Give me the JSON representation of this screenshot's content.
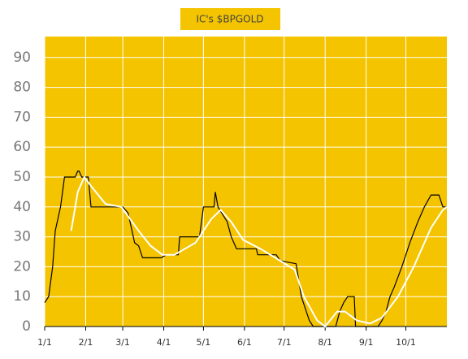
{
  "chart_data": {
    "type": "line",
    "title": "IC's $BPGOLD",
    "xlim": [
      0,
      304
    ],
    "ylim": [
      0,
      97
    ],
    "xticks": [
      {
        "value": 0,
        "label": "1/1"
      },
      {
        "value": 31,
        "label": "2/1"
      },
      {
        "value": 59,
        "label": "3/1"
      },
      {
        "value": 90,
        "label": "4/1"
      },
      {
        "value": 120,
        "label": "5/1"
      },
      {
        "value": 151,
        "label": "6/1"
      },
      {
        "value": 181,
        "label": "7/1"
      },
      {
        "value": 212,
        "label": "8/1"
      },
      {
        "value": 243,
        "label": "9/1"
      },
      {
        "value": 273,
        "label": "10/1"
      }
    ],
    "yticks": [
      0,
      10,
      20,
      30,
      40,
      50,
      60,
      70,
      80,
      90
    ],
    "grid": true,
    "background": "#f5c400",
    "series": [
      {
        "color": "#000000",
        "x": [
          0,
          3,
          6,
          8,
          12,
          15,
          23,
          25,
          26,
          28,
          33,
          35,
          59,
          63,
          68,
          71,
          74,
          88,
          92,
          101,
          102,
          117,
          120,
          128,
          129,
          131,
          138,
          141,
          145,
          160,
          161,
          175,
          178,
          190,
          194,
          200,
          203,
          220,
          223,
          226,
          229,
          234,
          235,
          252,
          255,
          258,
          261,
          264,
          270,
          276,
          282,
          287,
          292,
          298,
          301,
          304
        ],
        "values": [
          8,
          10,
          20,
          32,
          40,
          50,
          50,
          52,
          52,
          50,
          50,
          40,
          40,
          38,
          28,
          27,
          23,
          23,
          24,
          24,
          30,
          30,
          40,
          40,
          45,
          40,
          35,
          30,
          26,
          26,
          24,
          24,
          22,
          21,
          10,
          2,
          0,
          0,
          5,
          8,
          10,
          10,
          0,
          0,
          2,
          5,
          10,
          13,
          20,
          28,
          35,
          40,
          44,
          44,
          40,
          40
        ]
      },
      {
        "color": "#ffffff",
        "x": [
          20,
          25,
          30,
          35,
          46,
          58,
          71,
          80,
          89,
          98,
          114,
          126,
          133,
          141,
          150,
          163,
          178,
          189,
          196,
          206,
          212,
          221,
          227,
          236,
          246,
          255,
          267,
          279,
          292,
          301,
          304
        ],
        "values": [
          32,
          45,
          50,
          47,
          41,
          40,
          32,
          27,
          24,
          24,
          28,
          36,
          39,
          35,
          29,
          26,
          22,
          19,
          10,
          2,
          0,
          5,
          5,
          2,
          1,
          3,
          10,
          20,
          33,
          39,
          40
        ]
      }
    ]
  }
}
